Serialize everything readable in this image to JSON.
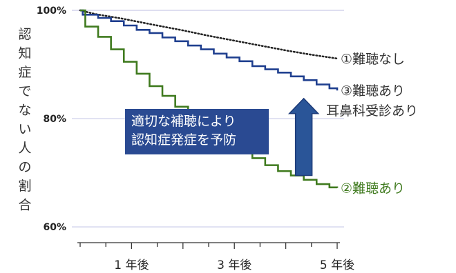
{
  "chart_data": {
    "type": "line",
    "title": "",
    "ylabel": "認知症でない人の割合",
    "ylim": [
      59,
      100
    ],
    "xlim": [
      0,
      5
    ],
    "y_ticks": [
      {
        "value": 100,
        "label": "100%"
      },
      {
        "value": 80,
        "label": "80%"
      },
      {
        "value": 60,
        "label": "60%"
      }
    ],
    "x_ticks": [
      {
        "value": 1,
        "label": "1 年後"
      },
      {
        "value": 3,
        "label": "3 年後"
      },
      {
        "value": 5,
        "label": "5 年後"
      }
    ],
    "series": [
      {
        "name": "①難聴なし",
        "label_lines": [
          "①難聴なし"
        ],
        "color": "#222222",
        "style": "dotted",
        "x": [
          0,
          0.3,
          0.8,
          1.5,
          2.0,
          2.5,
          3.0,
          3.5,
          4.0,
          4.5,
          5.0
        ],
        "y": [
          100,
          99.3,
          98.5,
          97.2,
          96.3,
          95.3,
          94.4,
          93.5,
          92.6,
          91.8,
          91.1
        ]
      },
      {
        "name": "③難聴あり 耳鼻科受診あり",
        "label_lines": [
          "③難聴あり",
          "耳鼻科受診あり"
        ],
        "color": "#1f3f8f",
        "style": "step",
        "x": [
          0,
          0.05,
          0.35,
          0.6,
          0.85,
          1.1,
          1.35,
          1.6,
          1.85,
          2.1,
          2.35,
          2.6,
          2.85,
          3.1,
          3.35,
          3.6,
          3.85,
          4.1,
          4.35,
          4.6,
          4.85,
          5.0
        ],
        "y": [
          100,
          99.2,
          98.6,
          98.0,
          97.2,
          96.4,
          95.8,
          95.0,
          94.3,
          93.5,
          92.8,
          92.0,
          91.3,
          90.6,
          89.7,
          89.1,
          88.5,
          87.8,
          87.1,
          86.3,
          85.6,
          85.2
        ]
      },
      {
        "name": "②難聴あり",
        "label_lines": [
          "②難聴あり"
        ],
        "color": "#3f7a1e",
        "style": "step",
        "x": [
          0,
          0.1,
          0.35,
          0.6,
          0.85,
          1.1,
          1.35,
          1.6,
          1.85,
          2.1,
          2.35,
          2.6,
          2.85,
          3.1,
          3.35,
          3.6,
          3.85,
          4.1,
          4.35,
          4.6,
          4.85,
          5.0
        ],
        "y": [
          100,
          97.0,
          95.1,
          92.8,
          90.5,
          88.3,
          86.0,
          84.2,
          82.2,
          80.5,
          78.8,
          77.3,
          75.8,
          74.2,
          72.7,
          71.4,
          70.3,
          69.5,
          68.7,
          67.9,
          67.3,
          67.2
        ]
      }
    ],
    "annotation": {
      "lines": [
        "適切な補聴により",
        "認知症発症を予防"
      ],
      "box_color": "#2a4a92",
      "arrow_color": "#2a5598",
      "arrow_from": 69.5,
      "arrow_to": 85.0,
      "arrow_x": 4.35
    },
    "grid": "horizontal",
    "grid_color": "#c9cbe8"
  }
}
